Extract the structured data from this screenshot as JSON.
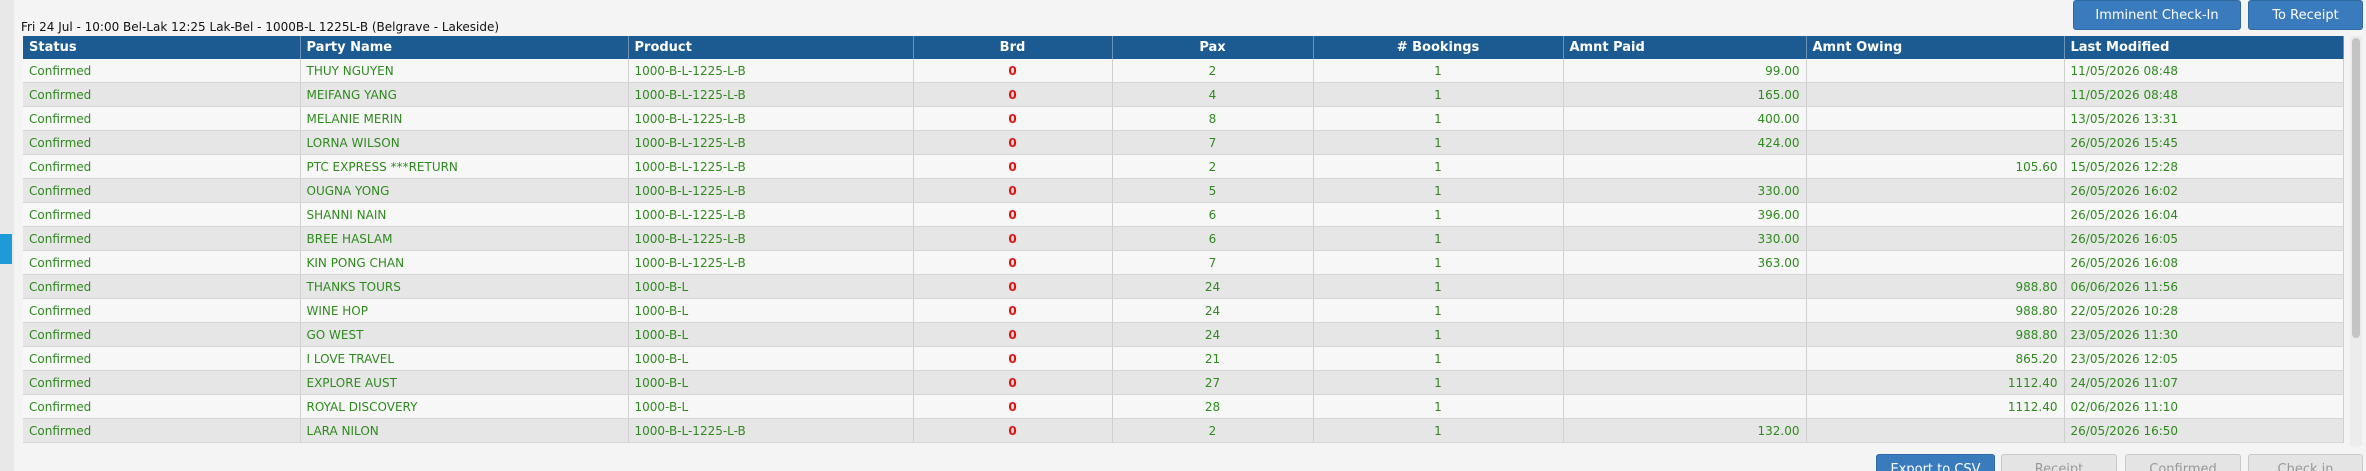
{
  "header": {
    "caption": "Fri 24 Jul - 10:00 Bel-Lak 12:25 Lak-Bel - 1000B-L 1225L-B (Belgrave - Lakeside)"
  },
  "buttons": {
    "imminent_checkin": "Imminent Check-In",
    "to_receipt": "To Receipt",
    "export_csv": "Export to CSV",
    "receipt": "Receipt",
    "confirmed": "Confirmed",
    "check_in": "Check in"
  },
  "table": {
    "columns": [
      "Status",
      "Party Name",
      "Product",
      "Brd",
      "Pax",
      "# Bookings",
      "Amnt Paid",
      "Amnt Owing",
      "Last Modified"
    ],
    "rows": [
      [
        "Confirmed",
        "THUY NGUYEN",
        "1000-B-L-1225-L-B",
        "0",
        "2",
        "1",
        "99.00",
        null,
        "11/05/2026 08:48"
      ],
      [
        "Confirmed",
        "MEIFANG YANG",
        "1000-B-L-1225-L-B",
        "0",
        "4",
        "1",
        "165.00",
        null,
        "11/05/2026 08:48"
      ],
      [
        "Confirmed",
        "MELANIE MERIN",
        "1000-B-L-1225-L-B",
        "0",
        "8",
        "1",
        "400.00",
        null,
        "13/05/2026 13:31"
      ],
      [
        "Confirmed",
        "LORNA WILSON",
        "1000-B-L-1225-L-B",
        "0",
        "7",
        "1",
        "424.00",
        null,
        "26/05/2026 15:45"
      ],
      [
        "Confirmed",
        "PTC EXPRESS ***RETURN",
        "1000-B-L-1225-L-B",
        "0",
        "2",
        "1",
        null,
        "105.60",
        "15/05/2026 12:28"
      ],
      [
        "Confirmed",
        "OUGNA YONG",
        "1000-B-L-1225-L-B",
        "0",
        "5",
        "1",
        "330.00",
        null,
        "26/05/2026 16:02"
      ],
      [
        "Confirmed",
        "SHANNI NAIN",
        "1000-B-L-1225-L-B",
        "0",
        "6",
        "1",
        "396.00",
        null,
        "26/05/2026 16:04"
      ],
      [
        "Confirmed",
        "BREE HASLAM",
        "1000-B-L-1225-L-B",
        "0",
        "6",
        "1",
        "330.00",
        null,
        "26/05/2026 16:05"
      ],
      [
        "Confirmed",
        "KIN PONG CHAN",
        "1000-B-L-1225-L-B",
        "0",
        "7",
        "1",
        "363.00",
        null,
        "26/05/2026 16:08"
      ],
      [
        "Confirmed",
        "THANKS TOURS",
        "1000-B-L",
        "0",
        "24",
        "1",
        null,
        "988.80",
        "06/06/2026 11:56"
      ],
      [
        "Confirmed",
        "WINE HOP",
        "1000-B-L",
        "0",
        "24",
        "1",
        null,
        "988.80",
        "22/05/2026 10:28"
      ],
      [
        "Confirmed",
        "GO WEST",
        "1000-B-L",
        "0",
        "24",
        "1",
        null,
        "988.80",
        "23/05/2026 11:30"
      ],
      [
        "Confirmed",
        "I LOVE TRAVEL",
        "1000-B-L",
        "0",
        "21",
        "1",
        null,
        "865.20",
        "23/05/2026 12:05"
      ],
      [
        "Confirmed",
        "EXPLORE AUST",
        "1000-B-L",
        "0",
        "27",
        "1",
        null,
        "1112.40",
        "24/05/2026 11:07"
      ],
      [
        "Confirmed",
        "ROYAL DISCOVERY",
        "1000-B-L",
        "0",
        "28",
        "1",
        null,
        "1112.40",
        "02/06/2026 11:10"
      ],
      [
        "Confirmed",
        "LARA NILON",
        "1000-B-L-1225-L-B",
        "0",
        "2",
        "1",
        "132.00",
        null,
        "26/05/2026 16:50"
      ]
    ]
  }
}
